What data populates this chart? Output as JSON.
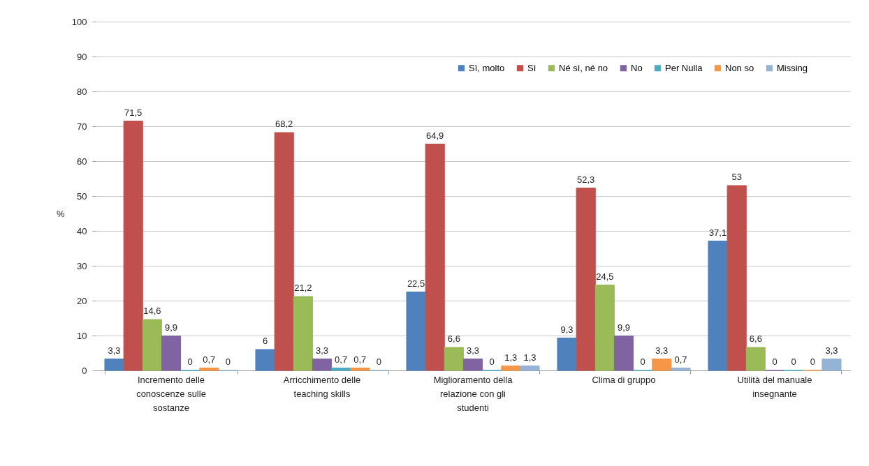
{
  "chart_data": {
    "type": "bar",
    "ylabel": "%",
    "categories": [
      "Incremento delle conoscenze sulle sostanze",
      "Arricchimento delle teaching skills",
      "Miglioramento della relazione con gli studenti",
      "Clima di gruppo",
      "Utilità del manuale insegnante"
    ],
    "series": [
      {
        "name": "Sì, molto",
        "color": "#4f81bd",
        "values": [
          3.3,
          6,
          22.5,
          9.3,
          37.1
        ],
        "value_labels": [
          "3,3",
          "6",
          "22,5",
          "9,3",
          "37,1"
        ]
      },
      {
        "name": "Sì",
        "color": "#c0504d",
        "values": [
          71.5,
          68.2,
          64.9,
          52.3,
          53
        ],
        "value_labels": [
          "71,5",
          "68,2",
          "64,9",
          "52,3",
          "53"
        ]
      },
      {
        "name": "Né sì, né no",
        "color": "#9bbb59",
        "values": [
          14.6,
          21.2,
          6.6,
          24.5,
          6.6
        ],
        "value_labels": [
          "14,6",
          "21,2",
          "6,6",
          "24,5",
          "6,6"
        ]
      },
      {
        "name": "No",
        "color": "#8064a2",
        "values": [
          9.9,
          3.3,
          3.3,
          9.9,
          0
        ],
        "value_labels": [
          "9,9",
          "3,3",
          "3,3",
          "9,9",
          "0"
        ]
      },
      {
        "name": "Per Nulla",
        "color": "#4bacc6",
        "values": [
          0,
          0.7,
          0,
          0,
          0
        ],
        "value_labels": [
          "0",
          "0,7",
          "0",
          "0",
          "0"
        ]
      },
      {
        "name": "Non so",
        "color": "#f79646",
        "values": [
          0.7,
          0.7,
          1.3,
          3.3,
          0
        ],
        "value_labels": [
          "0,7",
          "0,7",
          "1,3",
          "3,3",
          "0"
        ]
      },
      {
        "name": "Missing",
        "color": "#95b3d7",
        "values": [
          0,
          0,
          1.3,
          0.7,
          3.3
        ],
        "value_labels": [
          "0",
          "0",
          "1,3",
          "0,7",
          "3,3"
        ]
      }
    ],
    "ylim": [
      0,
      100
    ],
    "yticks": [
      0,
      10,
      20,
      30,
      40,
      50,
      60,
      70,
      80,
      90,
      100
    ],
    "grid": "y",
    "legend": "top right"
  }
}
